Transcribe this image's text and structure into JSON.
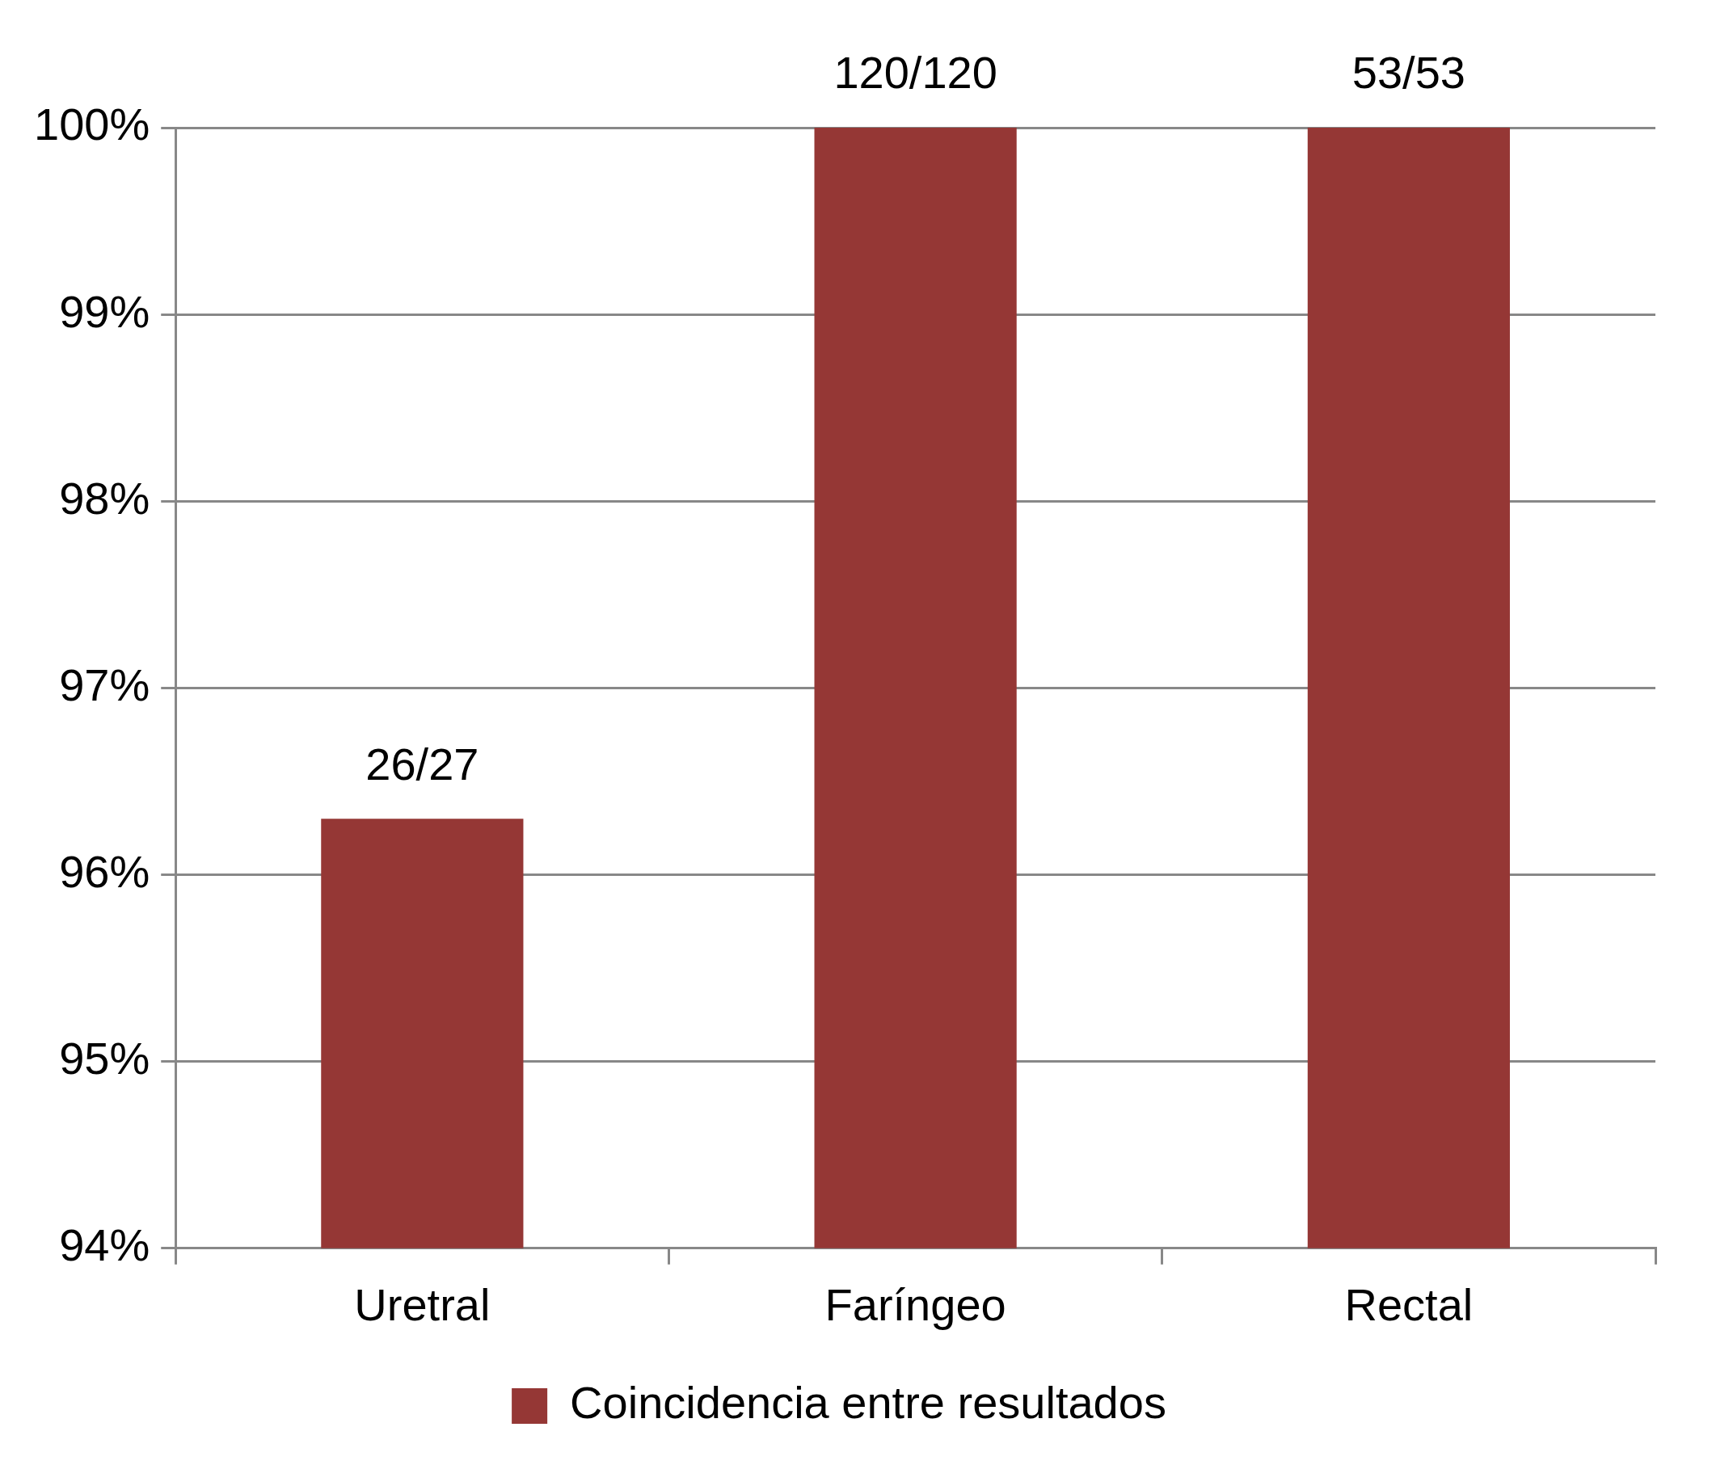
{
  "chart_data": {
    "type": "bar",
    "categories": [
      "Uretral",
      "Faríngeo",
      "Rectal"
    ],
    "series": [
      {
        "name": "Coincidencia entre resultados",
        "color": "#953735",
        "values": [
          96.3,
          100,
          100
        ],
        "value_labels": [
          "26/27",
          "120/120",
          "53/53"
        ]
      }
    ],
    "ylim": [
      94,
      100
    ],
    "yticks": [
      {
        "value": 94,
        "label": "94%"
      },
      {
        "value": 95,
        "label": "95%"
      },
      {
        "value": 96,
        "label": "96%"
      },
      {
        "value": 97,
        "label": "97%"
      },
      {
        "value": 98,
        "label": "98%"
      },
      {
        "value": 99,
        "label": "99%"
      },
      {
        "value": 100,
        "label": "100%"
      }
    ],
    "grid": "y",
    "legend": "bottom"
  }
}
